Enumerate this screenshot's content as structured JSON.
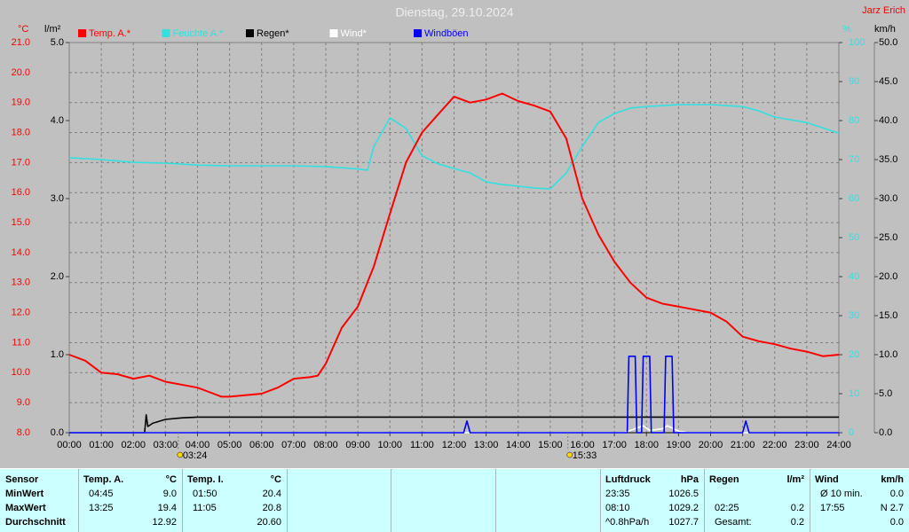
{
  "chart_data": {
    "type": "line",
    "title": "Dienstag, 29.10.2024",
    "author": "Jarz Erich",
    "axis_labels": {
      "y": "°C",
      "rain": "l/m²",
      "y2": "%",
      "wind": "km/h"
    },
    "xlim": [
      0,
      24
    ],
    "xticks": [
      {
        "value": 0,
        "label": "00:00"
      },
      {
        "value": 1,
        "label": "01:00"
      },
      {
        "value": 2,
        "label": "02:00"
      },
      {
        "value": 3,
        "label": "03:00"
      },
      {
        "value": 4,
        "label": "04:00"
      },
      {
        "value": 5,
        "label": "05:00"
      },
      {
        "value": 6,
        "label": "06:00"
      },
      {
        "value": 7,
        "label": "07:00"
      },
      {
        "value": 8,
        "label": "08:00"
      },
      {
        "value": 9,
        "label": "09:00"
      },
      {
        "value": 10,
        "label": "10:00"
      },
      {
        "value": 11,
        "label": "11:00"
      },
      {
        "value": 12,
        "label": "12:00"
      },
      {
        "value": 13,
        "label": "13:00"
      },
      {
        "value": 14,
        "label": "14:00"
      },
      {
        "value": 15,
        "label": "15:00"
      },
      {
        "value": 16,
        "label": "16:00"
      },
      {
        "value": 17,
        "label": "17:00"
      },
      {
        "value": 18,
        "label": "18:00"
      },
      {
        "value": 19,
        "label": "19:00"
      },
      {
        "value": 20,
        "label": "20:00"
      },
      {
        "value": 21,
        "label": "21:00"
      },
      {
        "value": 22,
        "label": "22:00"
      },
      {
        "value": 23,
        "label": "23:00"
      },
      {
        "value": 24,
        "label": "24:00"
      }
    ],
    "ylim": [
      8,
      21
    ],
    "yticks": [
      {
        "value": 8,
        "label": "8.0"
      },
      {
        "value": 9,
        "label": "9.0"
      },
      {
        "value": 10,
        "label": "10.0"
      },
      {
        "value": 11,
        "label": "11.0"
      },
      {
        "value": 12,
        "label": "12.0"
      },
      {
        "value": 13,
        "label": "13.0"
      },
      {
        "value": 14,
        "label": "14.0"
      },
      {
        "value": 15,
        "label": "15.0"
      },
      {
        "value": 16,
        "label": "16.0"
      },
      {
        "value": 17,
        "label": "17.0"
      },
      {
        "value": 18,
        "label": "18.0"
      },
      {
        "value": 19,
        "label": "19.0"
      },
      {
        "value": 20,
        "label": "20.0"
      },
      {
        "value": 21,
        "label": "21.0"
      }
    ],
    "rainlim": [
      0,
      5
    ],
    "rainticks": [
      {
        "value": 0,
        "label": "0.0"
      },
      {
        "value": 1,
        "label": "1.0"
      },
      {
        "value": 2,
        "label": "2.0"
      },
      {
        "value": 3,
        "label": "3.0"
      },
      {
        "value": 4,
        "label": "4.0"
      },
      {
        "value": 5,
        "label": "5.0"
      }
    ],
    "y2lim": [
      0,
      100
    ],
    "y2ticks": [
      0,
      10,
      20,
      30,
      40,
      50,
      60,
      70,
      80,
      90,
      100
    ],
    "windlim": [
      0,
      50
    ],
    "windticks": [
      {
        "value": 0,
        "label": "0.0"
      },
      {
        "value": 5,
        "label": "5.0"
      },
      {
        "value": 10,
        "label": "10.0"
      },
      {
        "value": 15,
        "label": "15.0"
      },
      {
        "value": 20,
        "label": "20.0"
      },
      {
        "value": 25,
        "label": "25.0"
      },
      {
        "value": 30,
        "label": "30.0"
      },
      {
        "value": 35,
        "label": "35.0"
      },
      {
        "value": 40,
        "label": "40.0"
      },
      {
        "value": 45,
        "label": "45.0"
      },
      {
        "value": 50,
        "label": "50.0"
      }
    ],
    "grid": true,
    "series": [
      {
        "name": "Temp. A.*",
        "color": "#ff0000",
        "axis": "y",
        "x": [
          0,
          0.5,
          1,
          1.5,
          2,
          2.5,
          3,
          3.5,
          4,
          4.5,
          4.75,
          5,
          6,
          6.5,
          7,
          7.5,
          7.75,
          8,
          8.5,
          9,
          9.5,
          10,
          10.5,
          11,
          11.5,
          12,
          12.5,
          13,
          13.5,
          14,
          14.5,
          15,
          15.5,
          16,
          16.5,
          17,
          17.5,
          18,
          18.5,
          19,
          19.5,
          20,
          20.5,
          21,
          21.5,
          22,
          22.5,
          23,
          23.5,
          24
        ],
        "values": [
          10.6,
          10.4,
          10.0,
          9.95,
          9.8,
          9.9,
          9.7,
          9.6,
          9.5,
          9.3,
          9.2,
          9.2,
          9.3,
          9.5,
          9.8,
          9.85,
          9.9,
          10.3,
          11.5,
          12.2,
          13.55,
          15.3,
          17.0,
          18.0,
          18.6,
          19.2,
          19.0,
          19.1,
          19.3,
          19.05,
          18.9,
          18.7,
          17.8,
          15.8,
          14.6,
          13.7,
          13.0,
          12.5,
          12.3,
          12.2,
          12.1,
          12.0,
          11.7,
          11.2,
          11.05,
          10.95,
          10.8,
          10.7,
          10.55,
          10.6
        ]
      },
      {
        "name": "Feuchte A.*",
        "color": "#33e0e0",
        "axis": "y2",
        "x": [
          0,
          1,
          2,
          3,
          4,
          5,
          6,
          7,
          8,
          9,
          9.3,
          9.5,
          10,
          10.5,
          11,
          11.5,
          12,
          12.5,
          13,
          13.5,
          14,
          14.5,
          15,
          15.5,
          16,
          16.5,
          17,
          17.5,
          18,
          19,
          20,
          21,
          21.5,
          22,
          23,
          24
        ],
        "values": [
          70.5,
          70,
          69.3,
          69.1,
          68.6,
          68.4,
          68.4,
          68.4,
          68.2,
          67.6,
          67.3,
          73.4,
          80.7,
          78,
          71,
          68.9,
          67.7,
          66.6,
          64.3,
          63.6,
          63.2,
          62.7,
          62.5,
          66.6,
          73.4,
          79.5,
          81.8,
          83.2,
          83.6,
          84.1,
          84.1,
          83.6,
          82.5,
          80.9,
          79.5,
          76.8
        ]
      },
      {
        "name": "Regen*",
        "color": "#000000",
        "axis": "rain",
        "x": [
          0,
          2.35,
          2.4,
          2.45,
          2.6,
          3,
          3.5,
          4,
          24
        ],
        "values": [
          0,
          0,
          0.23,
          0.08,
          0.12,
          0.17,
          0.19,
          0.2,
          0.2
        ]
      },
      {
        "name": "Wind*",
        "color": "#ffffff",
        "axis": "wind",
        "x": [
          0,
          17.3,
          17.5,
          17.9,
          18.1,
          18.5,
          18.65,
          19,
          19.3,
          24
        ],
        "values": [
          0,
          0,
          0.3,
          0.9,
          0.3,
          0.5,
          0.9,
          0.2,
          0,
          0
        ]
      },
      {
        "name": "Windböen",
        "color": "#0000ff",
        "axis": "wind",
        "x": [
          0,
          12.3,
          12.4,
          12.5,
          17.4,
          17.45,
          17.65,
          17.7,
          17.85,
          17.9,
          18.1,
          18.15,
          18.55,
          18.6,
          18.8,
          18.85,
          21.0,
          21.1,
          21.2,
          24
        ],
        "values": [
          0,
          0,
          1.5,
          0,
          0,
          9.8,
          9.8,
          0,
          0,
          9.8,
          9.8,
          0,
          0,
          9.8,
          9.8,
          0,
          0,
          1.5,
          0,
          0
        ]
      }
    ],
    "annotations": [
      {
        "x": 3.4,
        "label": "03:24"
      },
      {
        "x": 15.55,
        "label": "15:33"
      }
    ]
  },
  "table": {
    "sensor": {
      "title": "Sensor",
      "rows": [
        "MinWert",
        "MaxWert",
        "Durchschnitt"
      ]
    },
    "groups": [
      {
        "title": "Temp. A.",
        "unit": "°C",
        "rows": [
          [
            "04:45",
            "9.0"
          ],
          [
            "13:25",
            "19.4"
          ],
          [
            null,
            "12.92"
          ]
        ]
      },
      {
        "title": "Temp. I.",
        "unit": "°C",
        "rows": [
          [
            "01:50",
            "20.4"
          ],
          [
            "11:05",
            "20.8"
          ],
          [
            null,
            "20.60"
          ]
        ]
      },
      {
        "title": "Luftdruck",
        "unit": "hPa",
        "rows": [
          [
            "23:35",
            "1026.5"
          ],
          [
            "08:10",
            "1029.2"
          ],
          [
            "^0.8hPa/h",
            "1027.7"
          ]
        ]
      },
      {
        "title": "Regen",
        "unit": "l/m²",
        "rows": [
          [
            null,
            null
          ],
          [
            "02:25",
            "0.2"
          ],
          [
            "Gesamt:",
            "0.2"
          ]
        ]
      },
      {
        "title": "Wind",
        "unit": "km/h",
        "rows": [
          [
            "Ø 10 min.",
            "0.0"
          ],
          [
            "17:55",
            "N 2.7"
          ],
          [
            null,
            "0.0"
          ]
        ]
      }
    ]
  }
}
